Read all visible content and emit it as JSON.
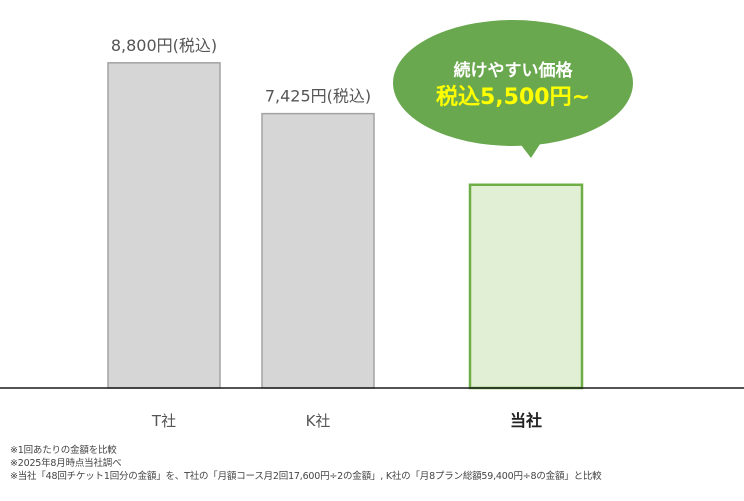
{
  "chart_data": {
    "type": "bar",
    "categories": [
      "T社",
      "K社",
      "当社"
    ],
    "values": [
      8800,
      7425,
      5500
    ],
    "value_labels": [
      "8,800円(税込)",
      "7,425円(税込)",
      ""
    ],
    "ylim": [
      0,
      10500
    ],
    "grid": false,
    "bar_colors": [
      {
        "fill": "#d6d6d6",
        "stroke": "#a3a3a3"
      },
      {
        "fill": "#d6d6d6",
        "stroke": "#a3a3a3"
      },
      {
        "fill": "#e1efd4",
        "stroke": "#6fae46"
      }
    ],
    "axis_color": "#1a1a1a",
    "callout": {
      "line1": "続けやすい価格",
      "line2": "税込5,500円~",
      "fill": "#6aa84f",
      "line1_color": "#ffffff",
      "line2_color": "#ffff00"
    }
  },
  "notes": [
    "※1回あたりの金額を比較",
    "※2025年8月時点当社調べ",
    "※当社「48回チケット1回分の金額」を、T社の「月額コース月2回17,600円÷2の金額」, K社の「月8プラン総額59,400円÷8の金額」と比較"
  ]
}
